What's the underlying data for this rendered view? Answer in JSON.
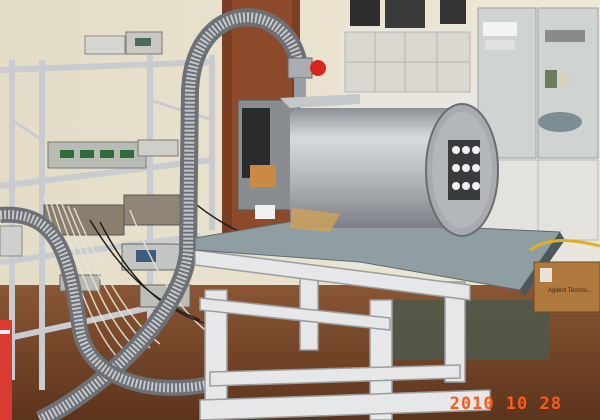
{
  "photo": {
    "date_stamp": "2010 10 28",
    "box_label": "Agilent Techno...",
    "colors": {
      "wall": "#e9e2cf",
      "floor": "#7a4a2c",
      "cryostat": "#b9bcbf",
      "shelf": "#dcdfe2",
      "stamp": "#ff5a1a"
    }
  }
}
